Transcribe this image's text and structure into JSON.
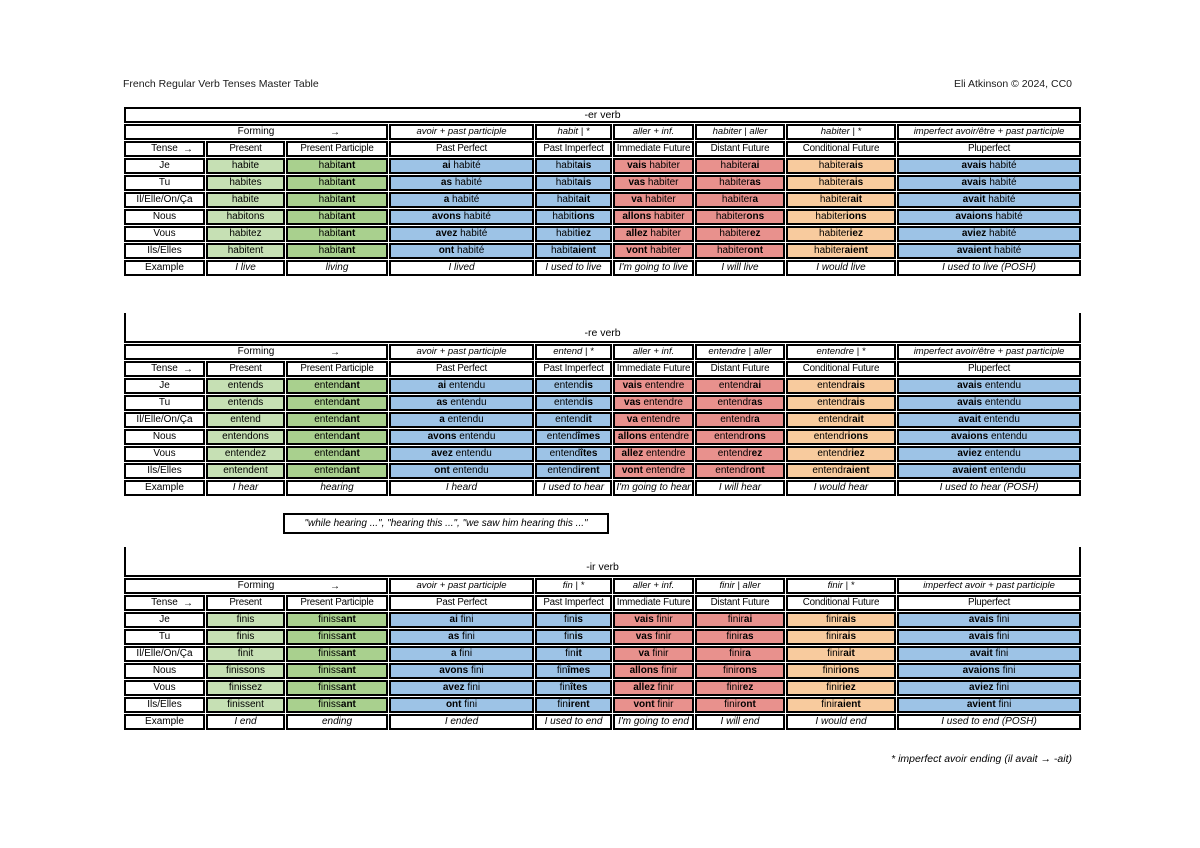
{
  "page": {
    "title": "French Regular Verb Tenses Master Table",
    "credit": "Eli Atkinson © 2024, CC0",
    "note_box": "\"while hearing ...\", \"hearing this ...\", \"we saw him hearing this ...\"",
    "footnote": "* imperfect avoir ending (il avait → -ait)"
  },
  "labels": {
    "forming": "Forming",
    "tense": "Tense",
    "arrow": "→",
    "example": "Example",
    "pronouns": [
      "Je",
      "Tu",
      "Il/Elle/On/Ça",
      "Nous",
      "Vous",
      "Ils/Elles"
    ],
    "tense_headers": [
      "Present",
      "Present Participle",
      "Past Perfect",
      "Past Imperfect",
      "Immediate Future",
      "Distant Future",
      "Conditional Future",
      "Pluperfect"
    ]
  },
  "colors": {
    "present_green": "#c6e0b4",
    "participle_green": "#a9d08e",
    "blue": "#9dc3e6",
    "salmon": "#e8918d",
    "orange": "#f8cb9e"
  },
  "tables": [
    {
      "title": "-er verb",
      "forming_formulas": [
        "avoir + past participle",
        "habit | *",
        "aller + inf.",
        "habiter | aller",
        "habiter | *",
        "imperfect avoir/être + past participle"
      ],
      "rows": [
        [
          "habite",
          "habit**ant**",
          "**ai** habité",
          "habit**ais**",
          "**vais** habiter",
          "habiter**ai**",
          "habiter**ais**",
          "**avais** habité"
        ],
        [
          "habites",
          "habit**ant**",
          "**as** habité",
          "habit**ais**",
          "**vas** habiter",
          "habiter**as**",
          "habiter**ais**",
          "**avais** habité"
        ],
        [
          "habite",
          "habit**ant**",
          "**a** habité",
          "habit**ait**",
          "**va** habiter",
          "habiter**a**",
          "habiter**ait**",
          "**avait** habité"
        ],
        [
          "habitons",
          "habit**ant**",
          "**avons** habité",
          "habit**ions**",
          "**allons** habiter",
          "habiter**ons**",
          "habiter**ions**",
          "**avaions** habité"
        ],
        [
          "habitez",
          "habit**ant**",
          "**avez** habité",
          "habit**iez**",
          "**allez** habiter",
          "habiter**ez**",
          "habiter**iez**",
          "**aviez** habité"
        ],
        [
          "habitent",
          "habit**ant**",
          "**ont** habité",
          "habit**aient**",
          "**vont** habiter",
          "habiter**ont**",
          "habiter**aient**",
          "**avaient** habité"
        ]
      ],
      "example_row": [
        "I live",
        "living",
        "I lived",
        "I used to live",
        "I'm going to live",
        "I will live",
        "I would live",
        "I used to live (POSH)"
      ]
    },
    {
      "title": "-re verb",
      "forming_formulas": [
        "avoir + past participle",
        "entend | *",
        "aller + inf.",
        "entendre | aller",
        "entendre | *",
        "imperfect avoir/être + past participle"
      ],
      "rows": [
        [
          "entends",
          "entend**ant**",
          "**ai** entendu",
          "entend**is**",
          "**vais** entendre",
          "entendr**ai**",
          "entendr**ais**",
          "**avais** entendu"
        ],
        [
          "entends",
          "entend**ant**",
          "**as** entendu",
          "entend**is**",
          "**vas** entendre",
          "entendr**as**",
          "entendr**ais**",
          "**avais** entendu"
        ],
        [
          "entend",
          "entend**ant**",
          "**a** entendu",
          "entend**it**",
          "**va** entendre",
          "entendr**a**",
          "entendr**ait**",
          "**avait** entendu"
        ],
        [
          "entendons",
          "entend**ant**",
          "**avons** entendu",
          "entend**îmes**",
          "**allons** entendre",
          "entendr**ons**",
          "entendr**ions**",
          "**avaions** entendu"
        ],
        [
          "entendez",
          "entend**ant**",
          "**avez** entendu",
          "entend**îtes**",
          "**allez** entendre",
          "entendr**ez**",
          "entendr**iez**",
          "**aviez** entendu"
        ],
        [
          "entendent",
          "entend**ant**",
          "**ont** entendu",
          "entend**irent**",
          "**vont** entendre",
          "entendr**ont**",
          "entendr**aient**",
          "**avaient** entendu"
        ]
      ],
      "example_row": [
        "I hear",
        "hearing",
        "I heard",
        "I used to hear",
        "I'm going to hear",
        "I will hear",
        "I would hear",
        "I used to hear (POSH)"
      ]
    },
    {
      "title": "-ir verb",
      "forming_formulas": [
        "avoir + past participle",
        "fin | *",
        "aller + inf.",
        "finir | aller",
        "finir | *",
        "imperfect avoir + past participle"
      ],
      "rows": [
        [
          "finis",
          "finiss**ant**",
          "**ai** fini",
          "fin**is**",
          "**vais** finir",
          "finir**ai**",
          "finir**ais**",
          "**avais** fini"
        ],
        [
          "finis",
          "finiss**ant**",
          "**as** fini",
          "fin**is**",
          "**vas** finir",
          "finir**as**",
          "finir**ais**",
          "**avais** fini"
        ],
        [
          "finit",
          "finiss**ant**",
          "**a** fini",
          "fin**it**",
          "**va** finir",
          "finir**a**",
          "finir**ait**",
          "**avait** fini"
        ],
        [
          "finissons",
          "finiss**ant**",
          "**avons** fini",
          "fin**îmes**",
          "**allons** finir",
          "finir**ons**",
          "finir**ions**",
          "**avaions** fini"
        ],
        [
          "finissez",
          "finiss**ant**",
          "**avez** fini",
          "fin**îtes**",
          "**allez** finir",
          "finir**ez**",
          "finir**iez**",
          "**aviez** fini"
        ],
        [
          "finissent",
          "finiss**ant**",
          "**ont** fini",
          "fin**irent**",
          "**vont** finir",
          "finir**ont**",
          "finir**aient**",
          "**avient** fini"
        ]
      ],
      "example_row": [
        "I end",
        "ending",
        "I ended",
        "I used to end",
        "I'm going to end",
        "I will end",
        "I would end",
        "I used to end (POSH)"
      ]
    }
  ]
}
